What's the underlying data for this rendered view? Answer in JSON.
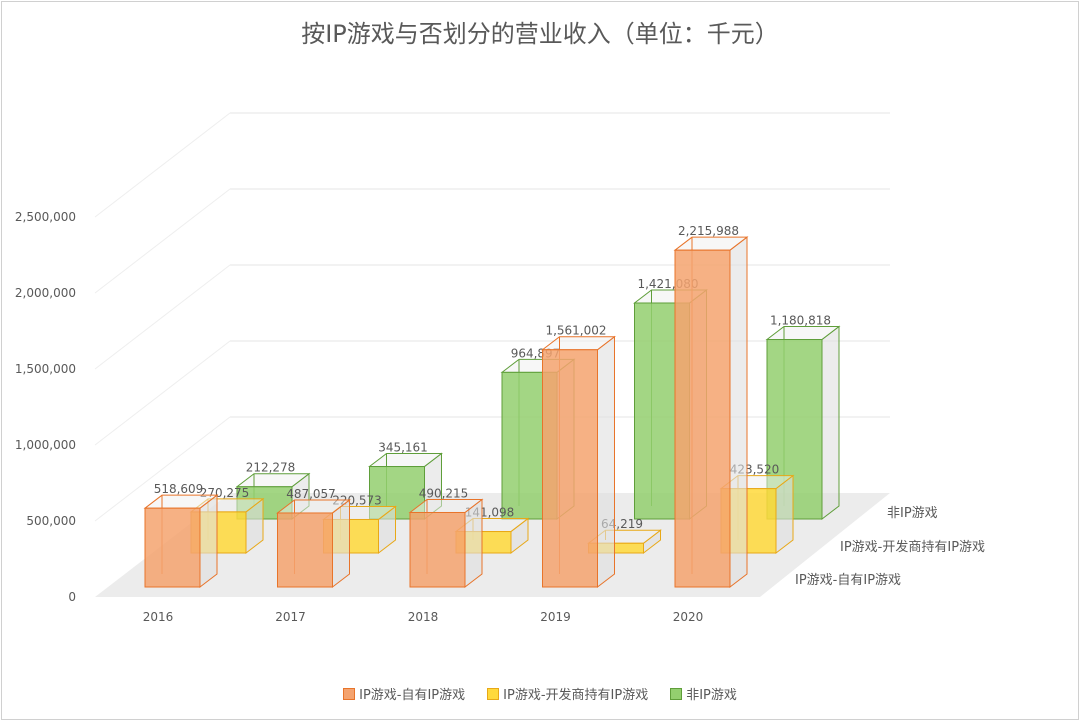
{
  "chart_data": {
    "type": "bar",
    "subtype": "3d-clustered-depth",
    "title": "按IP游戏与否划分的营业收入（单位：千元）",
    "categories": [
      "2016",
      "2017",
      "2018",
      "2019",
      "2020"
    ],
    "series": [
      {
        "name": "IP游戏-自有IP游戏",
        "color": "#f4a36f",
        "stroke": "#e8742a",
        "values": [
          518609,
          487057,
          490215,
          1561002,
          2215988
        ],
        "labels": [
          "518,609",
          "487,057",
          "490,215",
          "1,561,002",
          "2,215,988"
        ]
      },
      {
        "name": "IP游戏-开发商持有IP游戏",
        "color": "#ffd93b",
        "stroke": "#e8a817",
        "values": [
          270275,
          220573,
          141098,
          64219,
          423520
        ],
        "labels": [
          "270,275",
          "220,573",
          "141,098",
          "64,219",
          "423,520"
        ]
      },
      {
        "name": "非IP游戏",
        "color": "#93cf6f",
        "stroke": "#5f9e3a",
        "values": [
          212278,
          345161,
          964897,
          1421080,
          1180818
        ],
        "labels": [
          "212,278",
          "345,161",
          "964,897",
          "1,421,080",
          "1,180,818"
        ]
      }
    ],
    "yticks": [
      "0",
      "500,000",
      "1,000,000",
      "1,500,000",
      "2,000,000",
      "2,500,000"
    ],
    "ylim": [
      0,
      2500000
    ],
    "grid": true,
    "legend": "bottom"
  }
}
